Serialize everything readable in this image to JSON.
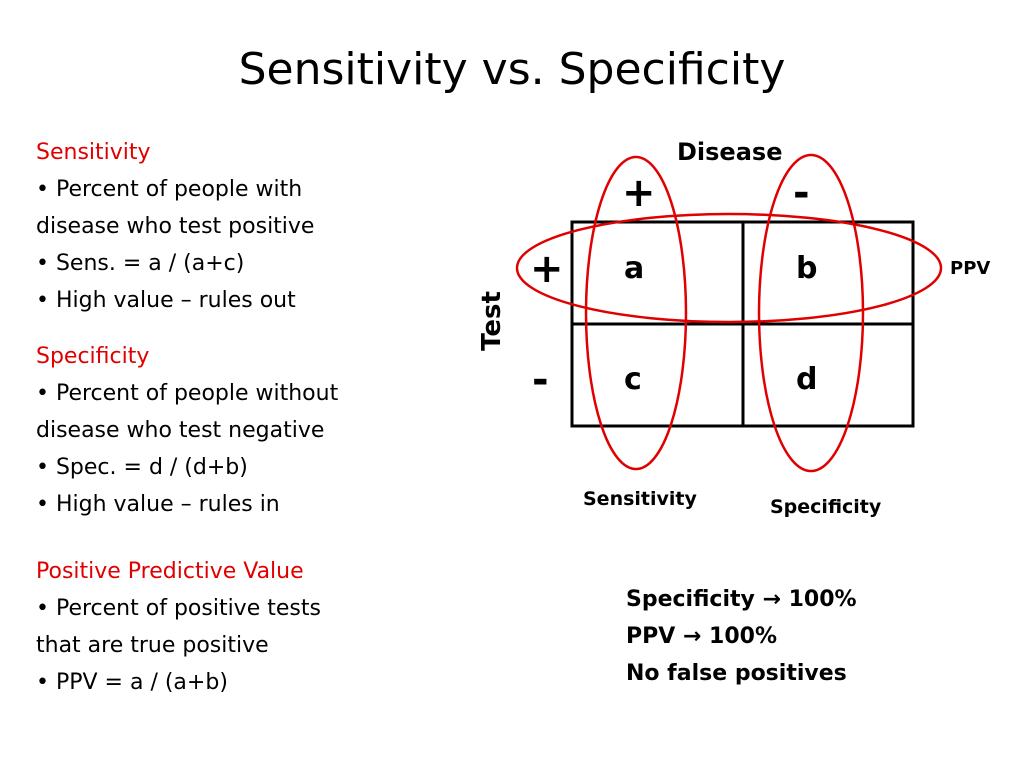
{
  "slide": {
    "title": "Sensitivity vs. Specificity"
  },
  "left_panel": {
    "sensitivity": {
      "heading": "Sensitivity",
      "lines": [
        "• Percent of people with",
        "disease who test positive",
        "• Sens. = a / (a+c)",
        "• High value – rules out"
      ]
    },
    "specificity": {
      "heading": "Specificity",
      "lines": [
        "• Percent of people without",
        "disease who test negative",
        "• Spec. = d / (d+b)",
        "• High value – rules in"
      ]
    },
    "ppv": {
      "heading": "Positive Predictive Value",
      "lines": [
        "• Percent of positive tests",
        "that are true positive",
        "• PPV = a / (a+b)"
      ]
    }
  },
  "diagram": {
    "disease_label": "Disease",
    "test_label": "Test",
    "disease_plus": "+",
    "disease_minus": "-",
    "test_plus": "+",
    "test_minus": "-",
    "cells": {
      "a": "a",
      "b": "b",
      "c": "c",
      "d": "d"
    },
    "ppv_label": "PPV",
    "sensitivity_label": "Sensitivity",
    "specificity_label": "Specificity"
  },
  "summary": {
    "line1": "Specificity → 100%",
    "line2": "PPV → 100%",
    "line3": "No false positives"
  },
  "colors": {
    "heading_red": "#e00000",
    "ellipse_red": "#e00000",
    "text": "#000000",
    "background": "#ffffff"
  }
}
